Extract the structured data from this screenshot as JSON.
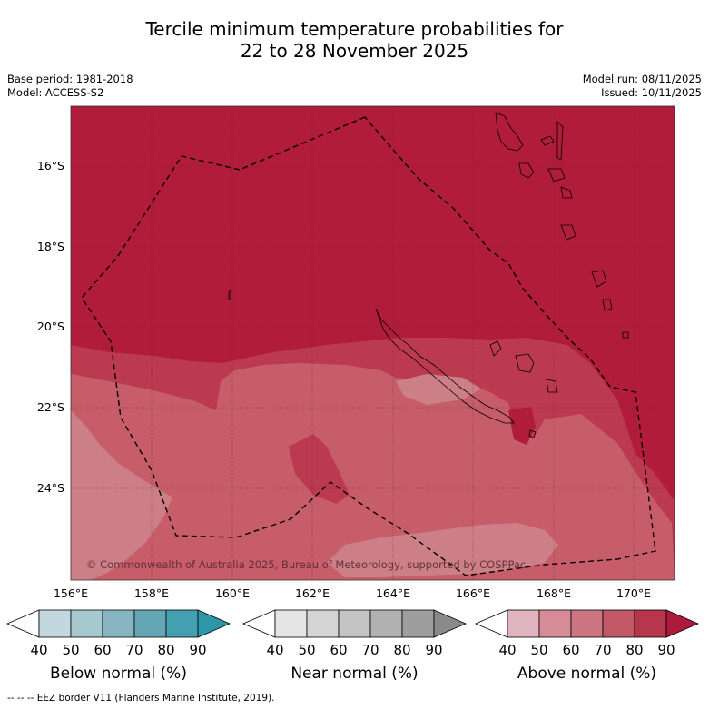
{
  "title_line1": "Tercile minimum temperature probabilities for",
  "title_line2": "22 to 28 November 2025",
  "base_period": "Base period: 1981-2018",
  "model": "Model: ACCESS-S2",
  "model_run": "Model run: 08/11/2025",
  "issued": "Issued: 10/11/2025",
  "copyright": "© Commonwealth of Australia 2025, Bureau of Meteorology, supported by COSPPac",
  "lat_labels": [
    "16°S",
    "18°S",
    "20°S",
    "22°S",
    "24°S"
  ],
  "lon_labels": [
    "156°E",
    "158°E",
    "160°E",
    "162°E",
    "164°E",
    "166°E",
    "168°E",
    "170°E"
  ],
  "colorbars": [
    {
      "label": "Below normal (%)",
      "ticks": [
        "40",
        "50",
        "60",
        "70",
        "80",
        "90"
      ],
      "colors": [
        "#c3d7de",
        "#a6c8cf",
        "#86b5c1",
        "#64a6b4",
        "#44a0b0",
        "#2f95a8"
      ]
    },
    {
      "label": "Near normal (%)",
      "ticks": [
        "40",
        "50",
        "60",
        "70",
        "80",
        "90"
      ],
      "colors": [
        "#e4e4e4",
        "#d4d4d4",
        "#c4c4c4",
        "#b0b0b0",
        "#9e9e9e",
        "#8a8a8a"
      ]
    },
    {
      "label": "Above normal (%)",
      "ticks": [
        "40",
        "50",
        "60",
        "70",
        "80",
        "90"
      ],
      "colors": [
        "#e0b4be",
        "#d68c98",
        "#cc7580",
        "#c25866",
        "#b8354e",
        "#ae1a3a"
      ]
    }
  ],
  "footer": "--  --  -- EEZ border V11 (Flanders Marine Institute, 2019).",
  "field_colors": {
    "p90": "#b01c3a",
    "p80": "#bb3a50",
    "p70": "#c65d68",
    "p60": "#cd7f87"
  }
}
